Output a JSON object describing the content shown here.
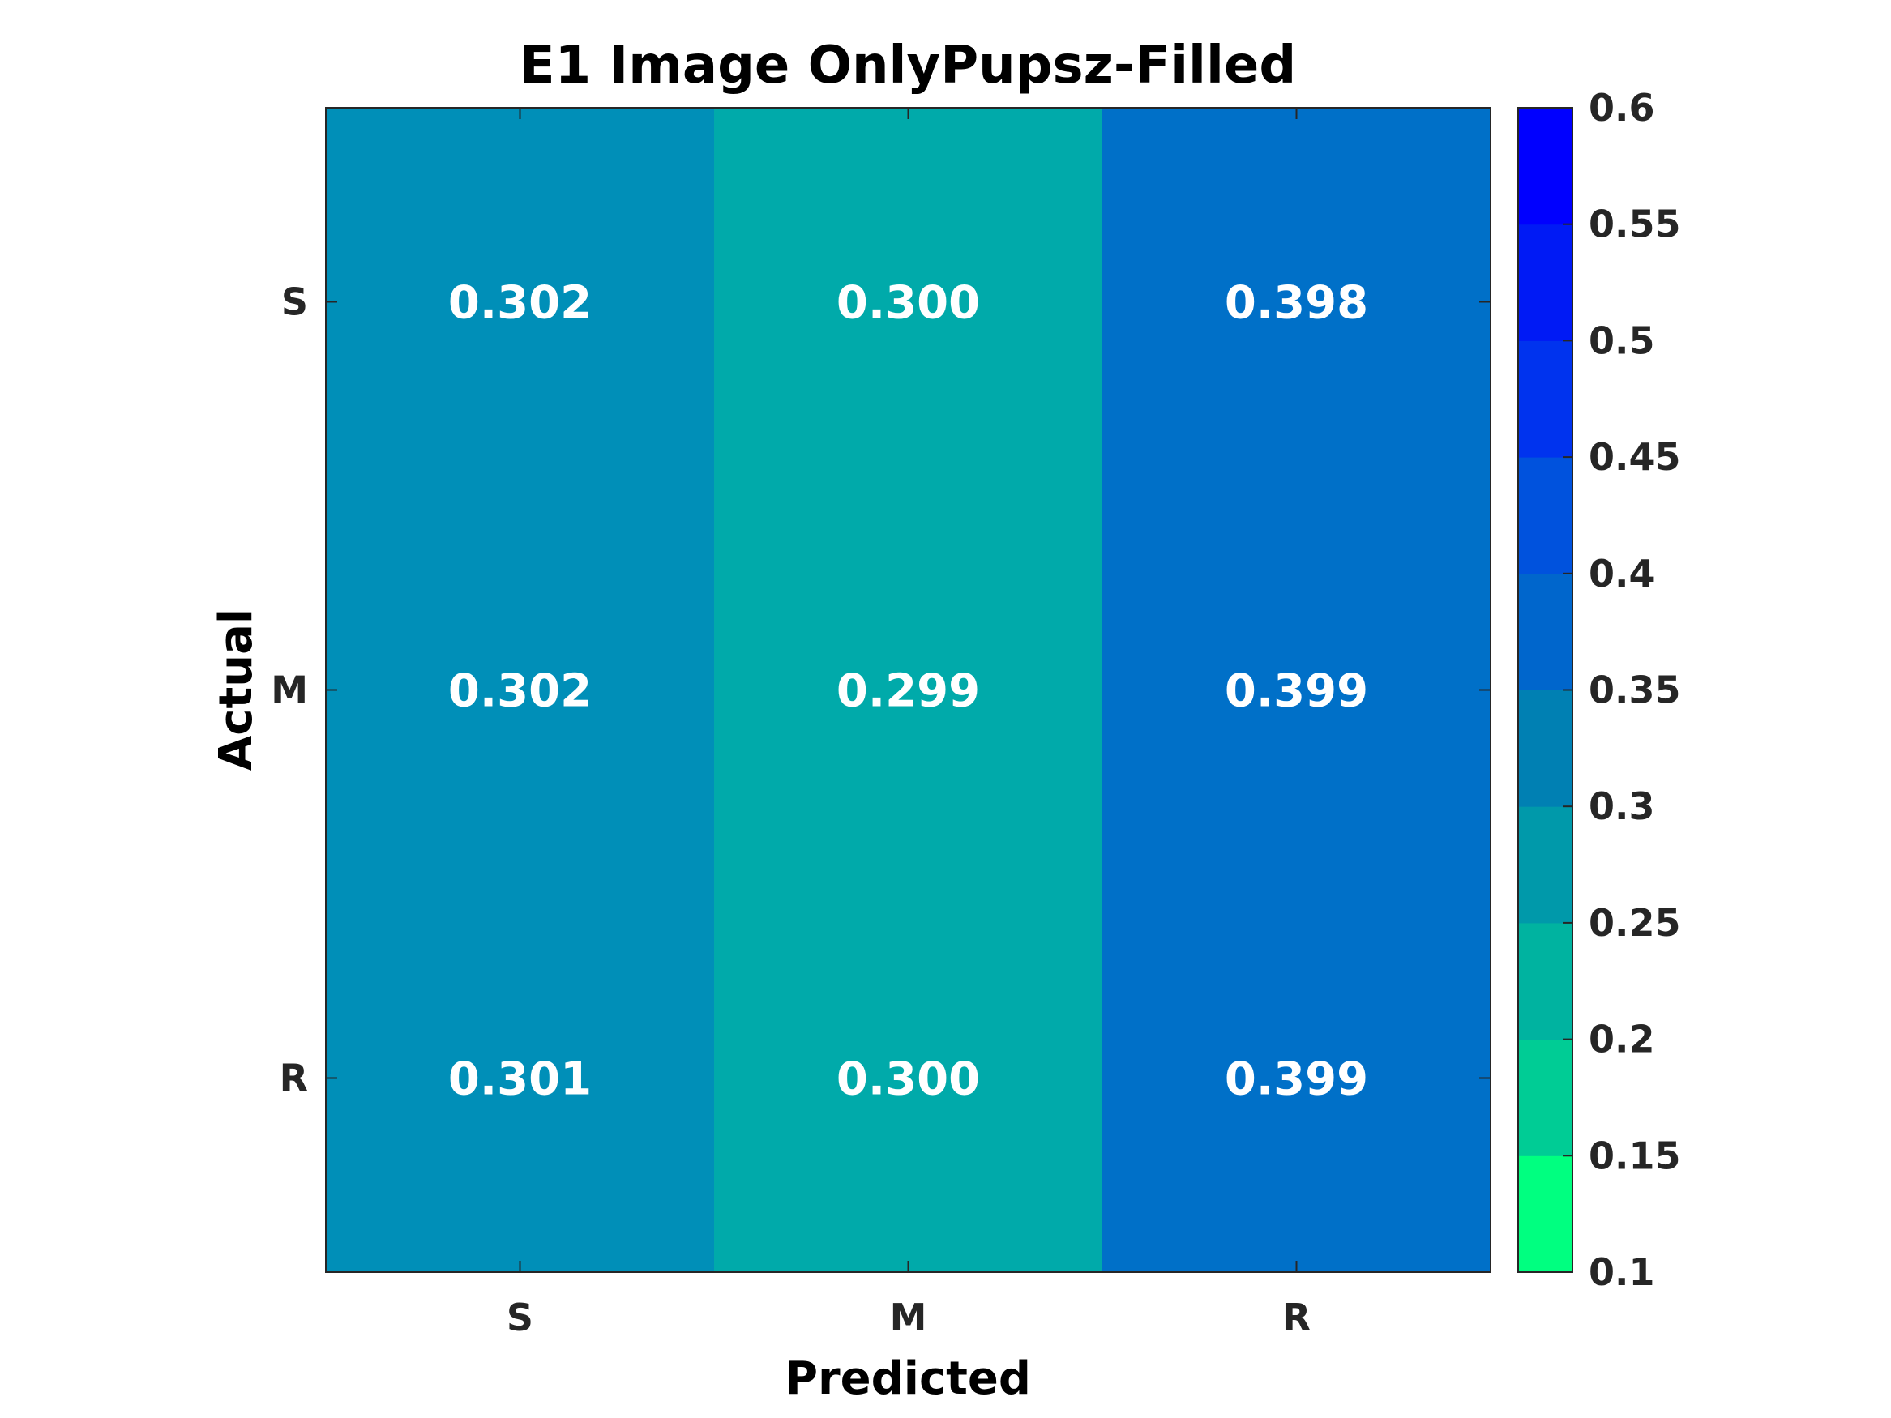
{
  "chart_data": {
    "type": "heatmap",
    "title": "E1 Image OnlyPupsz-Filled",
    "xlabel": "Predicted",
    "ylabel": "Actual",
    "x_categories": [
      "S",
      "M",
      "R"
    ],
    "y_categories": [
      "S",
      "M",
      "R"
    ],
    "values": [
      [
        0.302,
        0.3,
        0.398
      ],
      [
        0.302,
        0.299,
        0.399
      ],
      [
        0.301,
        0.3,
        0.399
      ]
    ],
    "value_labels": [
      [
        "0.302",
        "0.300",
        "0.398"
      ],
      [
        "0.302",
        "0.299",
        "0.399"
      ],
      [
        "0.301",
        "0.300",
        "0.399"
      ]
    ],
    "colorbar": {
      "clim": [
        0.1,
        0.6
      ],
      "tick_labels": [
        "0.1",
        "0.15",
        "0.2",
        "0.25",
        "0.3",
        "0.35",
        "0.4",
        "0.45",
        "0.5",
        "0.55",
        "0.6"
      ],
      "colors": [
        "#00FF80",
        "#00E68B",
        "#00CC95",
        "#00B3A0",
        "#0099AA",
        "#0080B3",
        "#0066CC",
        "#0052DD",
        "#0033EE",
        "#001AF5",
        "#0000FF"
      ]
    },
    "cell_colors": [
      [
        "#008FB8",
        "#00AAAA",
        "#0070C8"
      ],
      [
        "#008FB8",
        "#00AAAA",
        "#0070C8"
      ],
      [
        "#008FB8",
        "#00AAAA",
        "#0070C8"
      ]
    ]
  }
}
